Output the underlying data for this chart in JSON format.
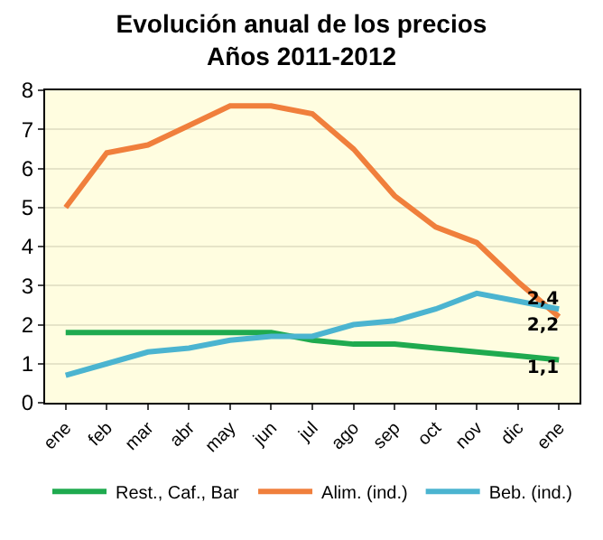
{
  "chart_data": {
    "type": "line",
    "title": "Evolución anual de los precios\nAños 2011-2012",
    "categories": [
      "ene",
      "feb",
      "mar",
      "abr",
      "may",
      "jun",
      "jul",
      "ago",
      "sep",
      "oct",
      "nov",
      "dic",
      "ene"
    ],
    "series": [
      {
        "name": "Rest., Caf., Bar",
        "color": "#1faa4f",
        "values": [
          1.8,
          1.8,
          1.8,
          1.8,
          1.8,
          1.8,
          1.6,
          1.5,
          1.5,
          1.4,
          1.3,
          1.2,
          1.1
        ],
        "value_labels": [
          null,
          null,
          null,
          null,
          null,
          null,
          null,
          null,
          null,
          null,
          null,
          null,
          "1,1"
        ]
      },
      {
        "name": "Alim. (ind.)",
        "color": "#f07f3c",
        "values": [
          5.0,
          6.4,
          6.6,
          7.1,
          7.6,
          7.6,
          7.4,
          6.5,
          5.3,
          4.5,
          4.1,
          3.1,
          2.2
        ],
        "value_labels": [
          null,
          null,
          null,
          null,
          null,
          null,
          null,
          null,
          null,
          null,
          null,
          null,
          "2,2"
        ]
      },
      {
        "name": "Beb. (ind.)",
        "color": "#4bb4d0",
        "values": [
          0.7,
          1.0,
          1.3,
          1.4,
          1.6,
          1.7,
          1.7,
          2.0,
          2.1,
          2.4,
          2.8,
          2.6,
          2.4
        ],
        "value_labels": [
          null,
          null,
          null,
          null,
          null,
          null,
          null,
          null,
          null,
          null,
          null,
          null,
          "2,4"
        ]
      }
    ],
    "ylim": [
      0,
      8
    ],
    "yticks": [
      0,
      1,
      2,
      3,
      4,
      5,
      6,
      7,
      8
    ],
    "grid": "y",
    "legend": "bottom",
    "marker": "none",
    "line_style": "solid"
  }
}
